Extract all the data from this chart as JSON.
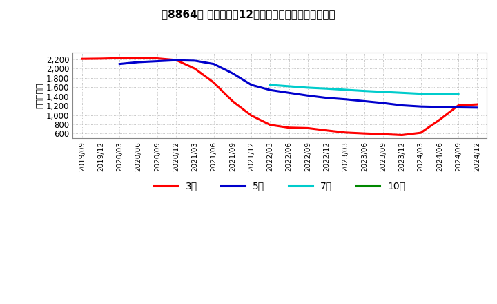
{
  "title": "［8864］ 当期純利益12か月移動合計の平均値の推移",
  "ylabel": "（百万円）",
  "ylim": [
    500,
    2350
  ],
  "yticks": [
    600,
    800,
    1000,
    1200,
    1400,
    1600,
    1800,
    2000,
    2200
  ],
  "background_color": "#ffffff",
  "plot_bg_color": "#ffffff",
  "grid_color": "#aaaaaa",
  "series": {
    "3year": {
      "color": "#ff0000",
      "label": "3年",
      "data": [
        [
          "2019/09",
          2210
        ],
        [
          "2019/12",
          2215
        ],
        [
          "2020/03",
          2225
        ],
        [
          "2020/06",
          2230
        ],
        [
          "2020/09",
          2220
        ],
        [
          "2020/12",
          2185
        ],
        [
          "2021/03",
          2000
        ],
        [
          "2021/06",
          1700
        ],
        [
          "2021/09",
          1300
        ],
        [
          "2021/12",
          990
        ],
        [
          "2022/03",
          790
        ],
        [
          "2022/06",
          730
        ],
        [
          "2022/09",
          720
        ],
        [
          "2022/12",
          670
        ],
        [
          "2023/03",
          625
        ],
        [
          "2023/06",
          605
        ],
        [
          "2023/09",
          590
        ],
        [
          "2023/12",
          570
        ],
        [
          "2024/03",
          620
        ],
        [
          "2024/06",
          900
        ],
        [
          "2024/09",
          1210
        ],
        [
          "2024/12",
          1230
        ]
      ]
    },
    "5year": {
      "color": "#0000cc",
      "label": "5年",
      "data": [
        [
          "2020/03",
          2100
        ],
        [
          "2020/06",
          2140
        ],
        [
          "2020/09",
          2160
        ],
        [
          "2020/12",
          2180
        ],
        [
          "2021/03",
          2170
        ],
        [
          "2021/06",
          2100
        ],
        [
          "2021/09",
          1900
        ],
        [
          "2021/12",
          1650
        ],
        [
          "2022/03",
          1540
        ],
        [
          "2022/06",
          1480
        ],
        [
          "2022/09",
          1420
        ],
        [
          "2022/12",
          1370
        ],
        [
          "2023/03",
          1340
        ],
        [
          "2023/06",
          1300
        ],
        [
          "2023/09",
          1260
        ],
        [
          "2023/12",
          1210
        ],
        [
          "2024/03",
          1185
        ],
        [
          "2024/06",
          1175
        ],
        [
          "2024/09",
          1165
        ],
        [
          "2024/12",
          1160
        ]
      ]
    },
    "7year": {
      "color": "#00cccc",
      "label": "7年",
      "data": [
        [
          "2022/03",
          1650
        ],
        [
          "2022/06",
          1620
        ],
        [
          "2022/09",
          1590
        ],
        [
          "2022/12",
          1570
        ],
        [
          "2023/03",
          1545
        ],
        [
          "2023/06",
          1520
        ],
        [
          "2023/09",
          1500
        ],
        [
          "2023/12",
          1480
        ],
        [
          "2024/03",
          1460
        ],
        [
          "2024/06",
          1450
        ],
        [
          "2024/09",
          1460
        ]
      ]
    },
    "10year": {
      "color": "#008800",
      "label": "10年",
      "data": []
    }
  },
  "legend_entries": [
    "3年",
    "5年",
    "7年",
    "10年"
  ],
  "legend_colors": [
    "#ff0000",
    "#0000cc",
    "#00cccc",
    "#008800"
  ],
  "xtick_labels": [
    "2019/09",
    "2019/12",
    "2020/03",
    "2020/06",
    "2020/09",
    "2020/12",
    "2021/03",
    "2021/06",
    "2021/09",
    "2021/12",
    "2022/03",
    "2022/06",
    "2022/09",
    "2022/12",
    "2023/03",
    "2023/06",
    "2023/09",
    "2023/12",
    "2024/03",
    "2024/06",
    "2024/09",
    "2024/12"
  ]
}
